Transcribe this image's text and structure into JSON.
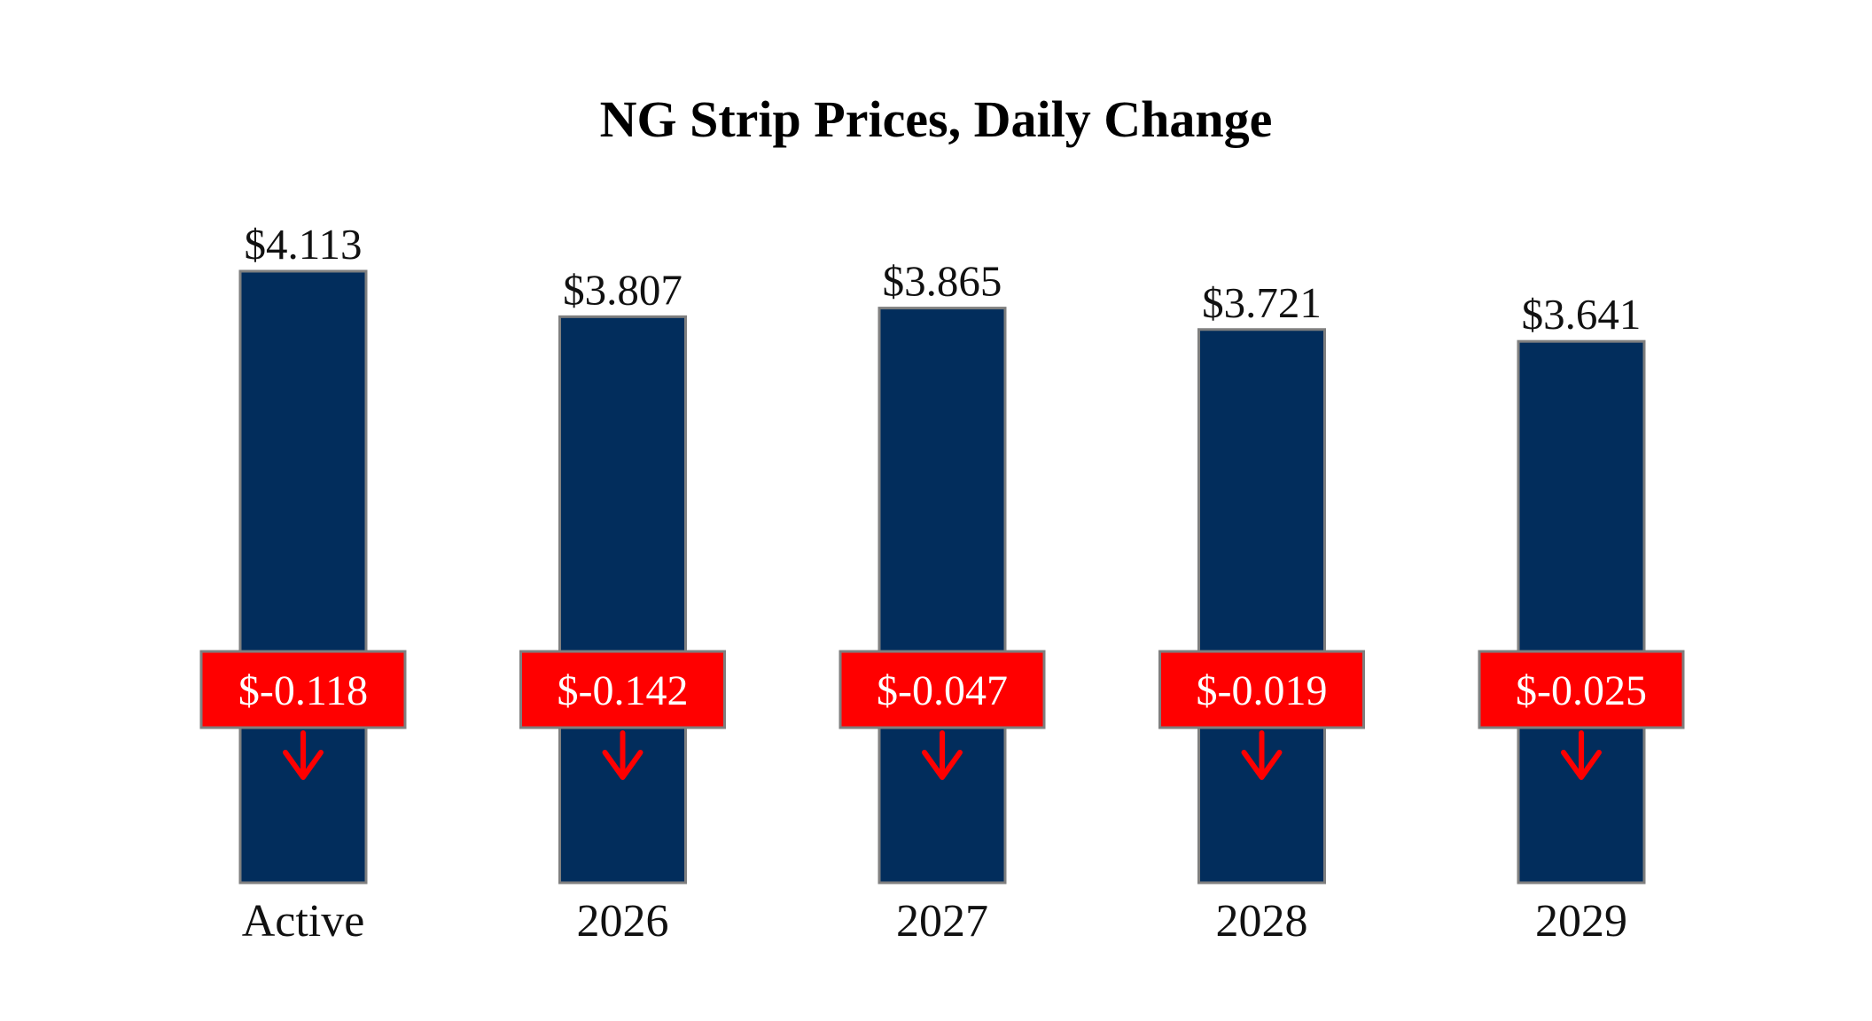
{
  "chart_data": {
    "type": "bar",
    "title": "NG Strip Prices, Daily Change",
    "xlabel": "",
    "ylabel": "",
    "categories": [
      "Active",
      "2026",
      "2027",
      "2028",
      "2029"
    ],
    "values": [
      4.113,
      3.807,
      3.865,
      3.721,
      3.641
    ],
    "value_labels": [
      "$4.113",
      "$3.807",
      "$3.865",
      "$3.721",
      "$3.641"
    ],
    "changes": [
      -0.118,
      -0.142,
      -0.047,
      -0.019,
      -0.025
    ],
    "change_labels": [
      "$-0.118",
      "$-0.142",
      "$-0.047",
      "$-0.019",
      "$-0.025"
    ],
    "change_direction": [
      "down",
      "down",
      "down",
      "down",
      "down"
    ],
    "ylim": [
      0,
      4.113
    ],
    "grid": false,
    "legend": "none",
    "colors": {
      "bar": "#022d5c",
      "bar_border": "#7f7f7f",
      "change_box": "#ff0000",
      "change_box_border": "#7f7f7f",
      "arrow": "#ff0000"
    }
  }
}
